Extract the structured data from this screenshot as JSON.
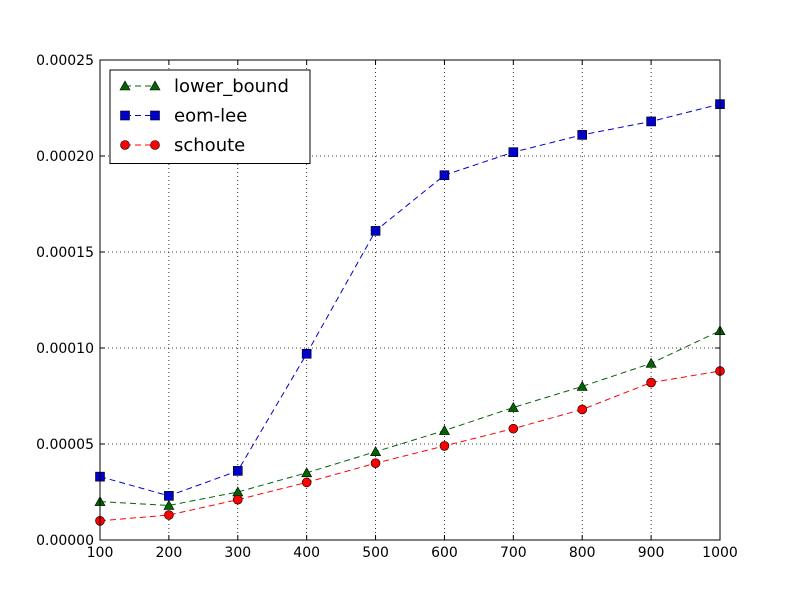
{
  "chart_data": {
    "type": "line",
    "title": "",
    "xlabel": "",
    "ylabel": "",
    "x": [
      100,
      200,
      300,
      400,
      500,
      600,
      700,
      800,
      900,
      1000
    ],
    "xlim": [
      100,
      1000
    ],
    "ylim": [
      0,
      0.00025
    ],
    "x_ticks": [
      "100",
      "200",
      "300",
      "400",
      "500",
      "600",
      "700",
      "800",
      "900",
      "1000"
    ],
    "y_ticks": [
      "0.00000",
      "0.00005",
      "0.00010",
      "0.00015",
      "0.00020",
      "0.00025"
    ],
    "grid": true,
    "legend_position": "upper-left",
    "series": [
      {
        "name": "lower_bound",
        "color": "#006400",
        "marker": "triangle",
        "line_style": "dashed",
        "values": [
          2e-05,
          1.8e-05,
          2.5e-05,
          3.5e-05,
          4.6e-05,
          5.7e-05,
          6.9e-05,
          8e-05,
          9.2e-05,
          0.000109
        ]
      },
      {
        "name": "eom-lee",
        "color": "#0000cc",
        "marker": "square",
        "line_style": "dashed",
        "values": [
          3.3e-05,
          2.3e-05,
          3.6e-05,
          9.7e-05,
          0.000161,
          0.00019,
          0.000202,
          0.000211,
          0.000218,
          0.000227
        ]
      },
      {
        "name": "schoute",
        "color": "#ff0000",
        "marker": "circle",
        "line_style": "dashed",
        "values": [
          1e-05,
          1.3e-05,
          2.1e-05,
          3e-05,
          4e-05,
          4.9e-05,
          5.8e-05,
          6.8e-05,
          8.2e-05,
          8.8e-05
        ]
      }
    ]
  }
}
